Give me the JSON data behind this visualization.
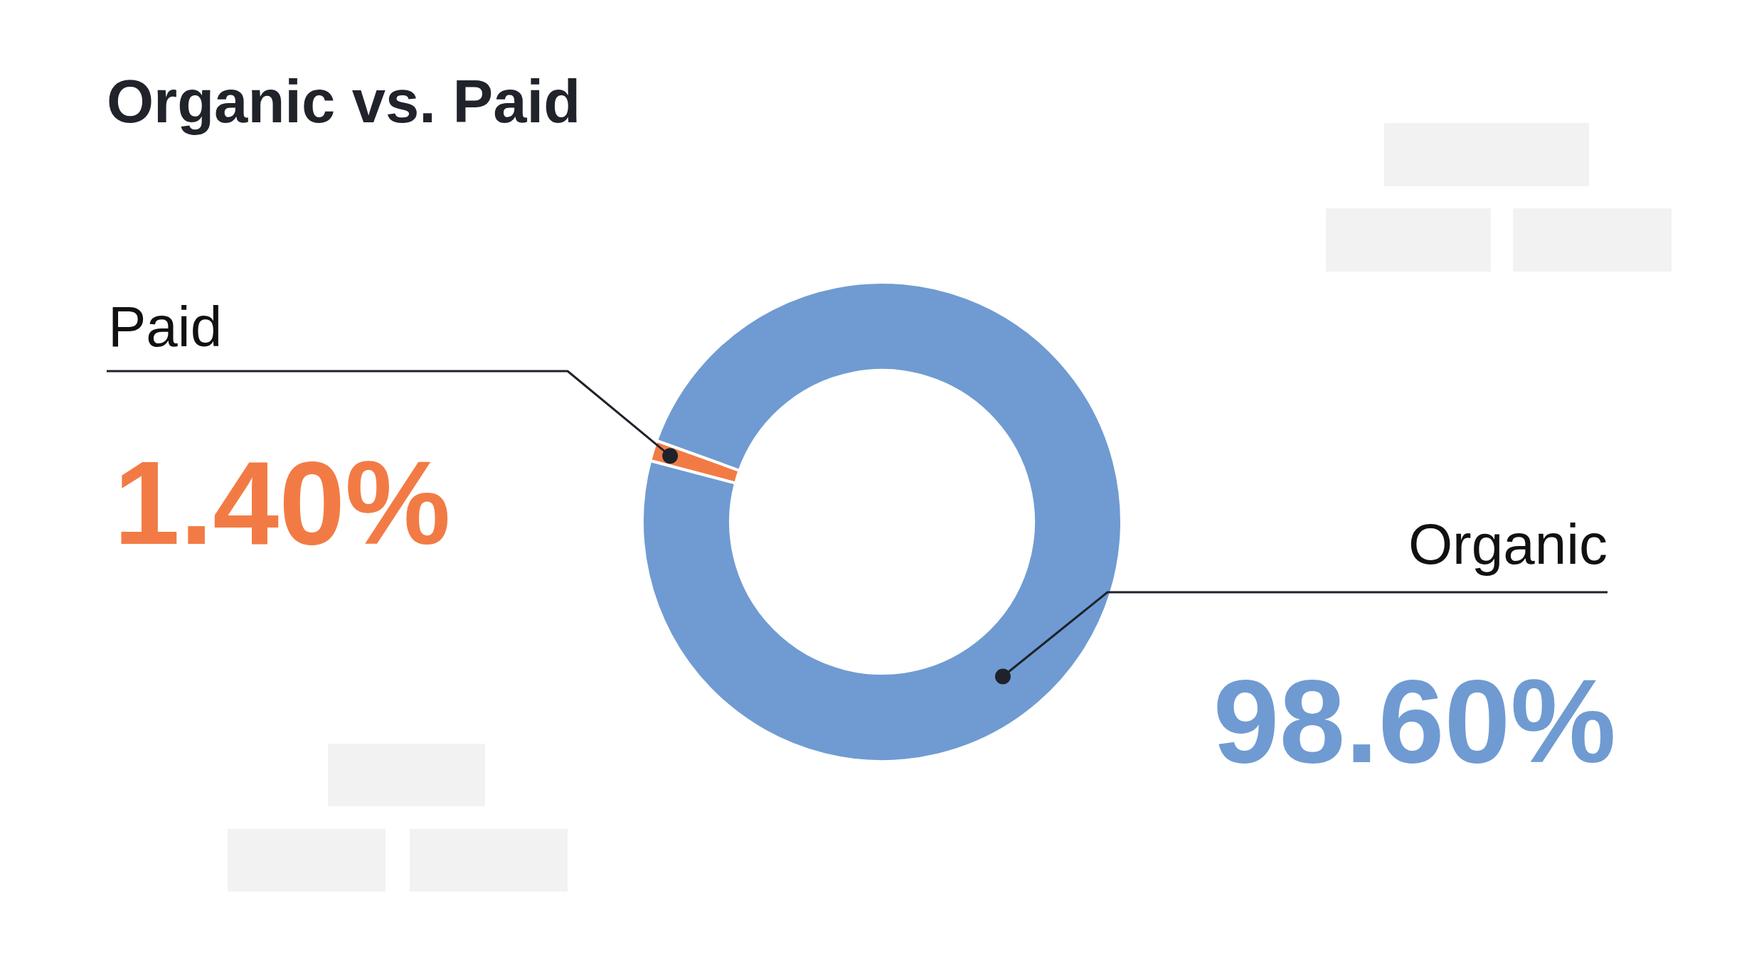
{
  "chart_data": {
    "type": "donut",
    "title": "Organic vs. Paid",
    "categories": [
      "Paid",
      "Organic"
    ],
    "values": [
      1.4,
      98.6
    ],
    "colors": [
      "#f27b45",
      "#6f9bd2"
    ],
    "value_labels": [
      "1.40%",
      "98.60%"
    ]
  }
}
